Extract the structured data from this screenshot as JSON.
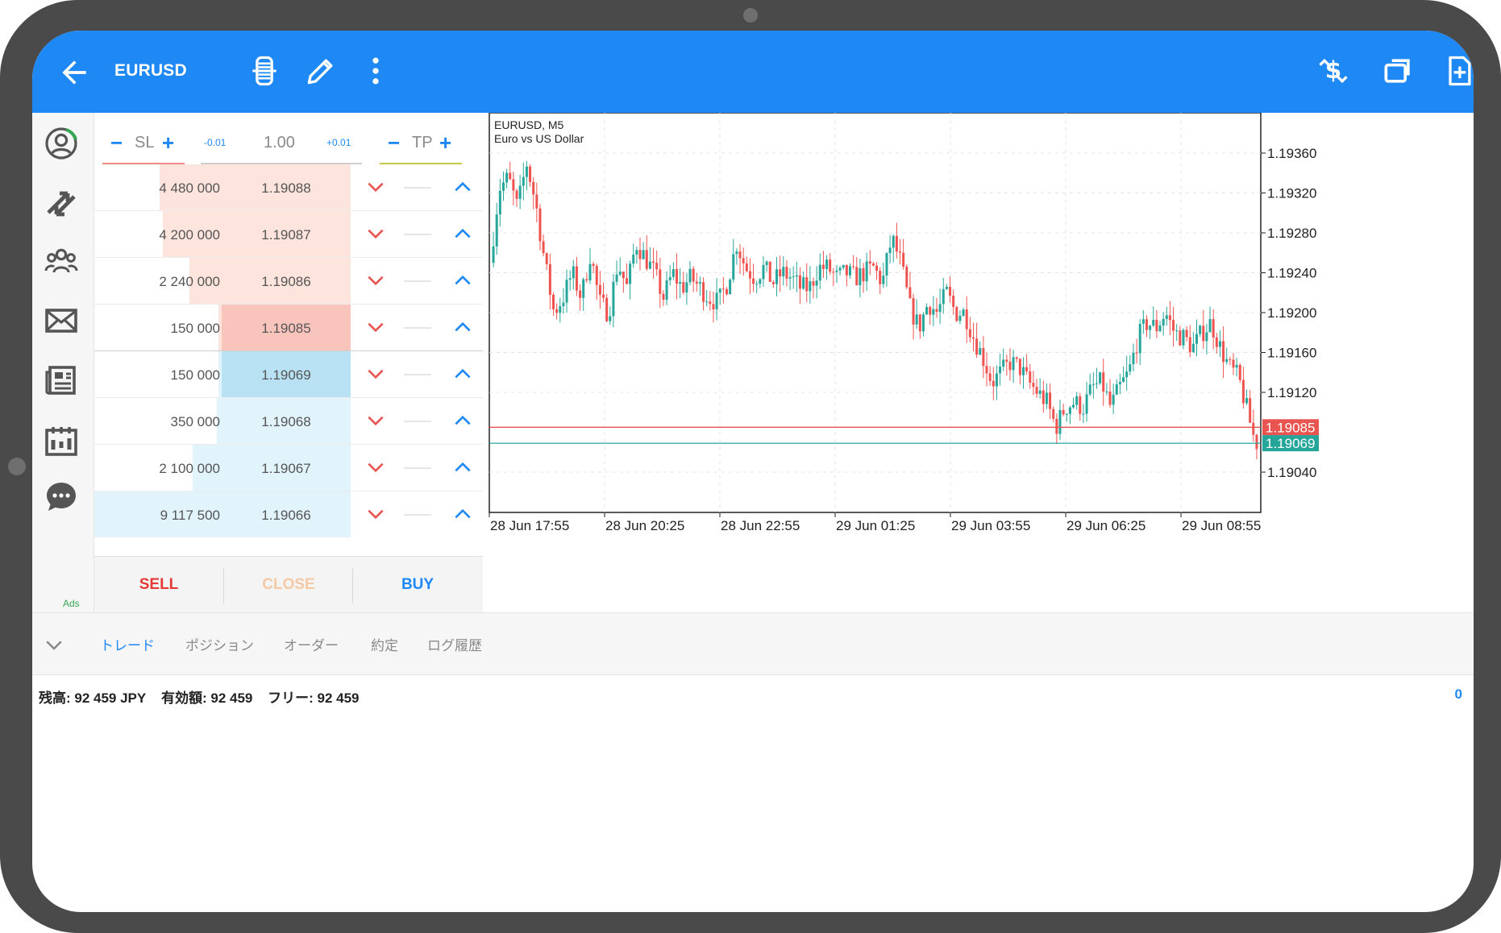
{
  "header": {
    "symbol": "EURUSD",
    "icons": [
      "back-arrow-icon",
      "one-click-trading-icon",
      "pencil-icon",
      "more-vert-icon",
      "quotes-dollar-icon",
      "windows-icon",
      "new-document-icon"
    ]
  },
  "left_nav": {
    "icons": [
      "profile-icon",
      "trade-arrows-icon",
      "community-icon",
      "mail-icon",
      "news-icon",
      "calendar-icon",
      "chat-icon"
    ],
    "ads_label": "Ads"
  },
  "order_book": {
    "sl_label": "SL",
    "tp_label": "TP",
    "minus": "−",
    "plus": "+",
    "lot_decrement": "-0.01",
    "lot_value": "1.00",
    "lot_increment": "+0.01",
    "asks": [
      {
        "volume": "4 480 000",
        "price": "1.19088",
        "depth": 0.49
      },
      {
        "volume": "4 200 000",
        "price": "1.19087",
        "depth": 0.46
      },
      {
        "volume": "2 240 000",
        "price": "1.19086",
        "depth": 0.25
      },
      {
        "volume": "150 000",
        "price": "1.19085",
        "depth": 0.02
      }
    ],
    "bids": [
      {
        "volume": "150 000",
        "price": "1.19069",
        "depth": 0.02
      },
      {
        "volume": "350 000",
        "price": "1.19068",
        "depth": 0.04
      },
      {
        "volume": "2 100 000",
        "price": "1.19067",
        "depth": 0.23
      },
      {
        "volume": "9 117 500",
        "price": "1.19066",
        "depth": 1.0
      }
    ],
    "sell_label": "SELL",
    "close_label": "CLOSE",
    "buy_label": "BUY"
  },
  "chart_data": {
    "type": "candlestick",
    "title": "EURUSD, M5",
    "subtitle": "Euro vs US Dollar",
    "x_ticks": [
      "28 Jun 17:55",
      "28 Jun 20:25",
      "28 Jun 22:55",
      "29 Jun 01:25",
      "29 Jun 03:55",
      "29 Jun 06:25",
      "29 Jun 08:55"
    ],
    "y_ticks": [
      "1.19360",
      "1.19320",
      "1.19280",
      "1.19240",
      "1.19200",
      "1.19160",
      "1.19120",
      "1.19040"
    ],
    "ylim": [
      1.19,
      1.194
    ],
    "grid": true,
    "bid_line": {
      "label": "1.19085",
      "value": 1.19085,
      "color": "#e8544f"
    },
    "ask_line": {
      "label": "1.19069",
      "value": 1.19069,
      "color": "#26a69a"
    },
    "up_color": "#26a69a",
    "down_color": "#ef5350",
    "path_approx": [
      1.1925,
      1.19325,
      1.19335,
      1.19305,
      1.1935,
      1.1931,
      1.1925,
      1.192,
      1.19215,
      1.1924,
      1.19215,
      1.1926,
      1.1921,
      1.192,
      1.1925,
      1.19225,
      1.1927,
      1.19255,
      1.1924,
      1.19215,
      1.1924,
      1.19225,
      1.19235,
      1.19225,
      1.19215,
      1.1921,
      1.1923,
      1.1927,
      1.19245,
      1.19235,
      1.19245,
      1.1923,
      1.1924,
      1.19235,
      1.19225,
      1.19225,
      1.19245,
      1.19245,
      1.19235,
      1.1924,
      1.19235,
      1.1924,
      1.19245,
      1.1923,
      1.19275,
      1.1925,
      1.19205,
      1.19185,
      1.1921,
      1.192,
      1.1922,
      1.192,
      1.192,
      1.19175,
      1.19155,
      1.1913,
      1.1914,
      1.1915,
      1.19145,
      1.1913,
      1.1912,
      1.1911,
      1.19085,
      1.19105,
      1.1911,
      1.19105,
      1.19125,
      1.1913,
      1.19105,
      1.19125,
      1.1914,
      1.19175,
      1.1919,
      1.19185,
      1.192,
      1.1918,
      1.19175,
      1.19165,
      1.1918,
      1.1919,
      1.19165,
      1.19145,
      1.19135,
      1.191,
      1.19063
    ]
  },
  "bottom_tabs": {
    "items": [
      "トレード",
      "ポジション",
      "オーダー",
      "約定",
      "ログ履歴"
    ],
    "active": 0
  },
  "account": {
    "balance": "残高:  92 459 JPY",
    "equity": "有効額:  92 459",
    "free": "フリー:  92 459",
    "profit": "0"
  }
}
